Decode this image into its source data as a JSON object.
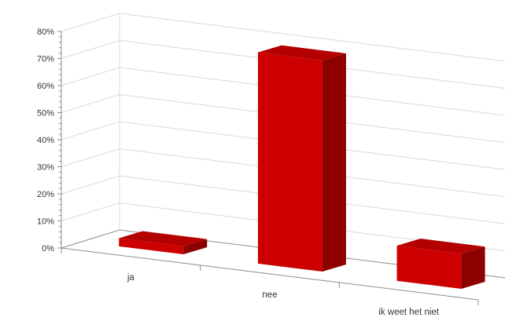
{
  "chart_data": {
    "type": "bar",
    "categories": [
      "ja",
      "nee",
      "ik weet het niet"
    ],
    "values": [
      3,
      78,
      13
    ],
    "ylim": [
      0,
      80
    ],
    "yticks": [
      "0%",
      "10%",
      "20%",
      "30%",
      "40%",
      "50%",
      "60%",
      "70%",
      "80%"
    ],
    "title": "",
    "xlabel": "",
    "ylabel": "",
    "grid": true,
    "bar_color": "#cc0000",
    "bar_side_color": "#8c0000",
    "bar_top_color": "#b30000"
  }
}
